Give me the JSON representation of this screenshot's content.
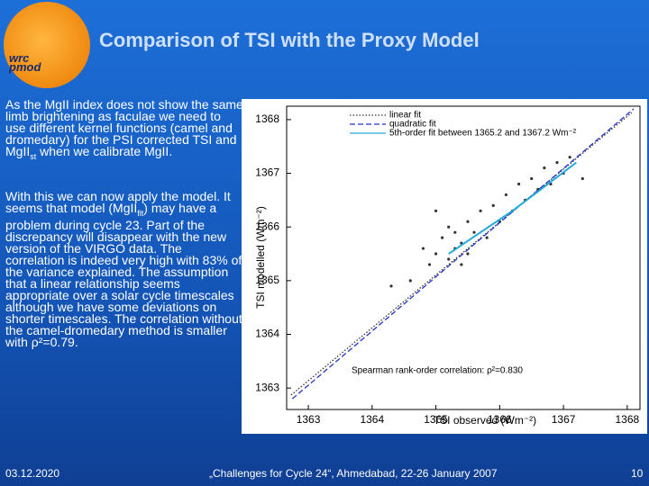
{
  "slide": {
    "title": "Comparison of TSI with the Proxy Model",
    "logo": [
      "wrc",
      "pmod"
    ],
    "body": [
      [
        "As the MgII index does not show the same limb brightening as faculae we need to use different kernel functions (camel and dromedary) for the PSI corrected TSI and MgII",
        "st",
        " when we calibrate MgII."
      ],
      [
        "With this we can now apply the model. It seems that model (MgII",
        "fit",
        ") may have a problem during cycle 23. Part of the discrepancy will disappear with the new version of the VIRGO data. The correlation is indeed very high with 83% of the variance explained. The assumption that a linear relationship seems appropriate over a solar cycle timescales although we have some deviations on shorter timescales. The correlation without the camel-dromedary method is smaller with ρ²=0.79."
      ]
    ],
    "footer": {
      "date": "03.12.2020",
      "event": "„Challenges for Cycle 24“, Ahmedabad, 22-26 January 2007",
      "page": "10"
    }
  },
  "chart_data": {
    "type": "scatter",
    "xlabel": "TSI observed (Wm⁻²)",
    "ylabel": "TSI modelled (Wm⁻²)",
    "annotation": "Spearman rank-order correlation: ρ²=0.830",
    "color": "#333333",
    "x": [
      1364.6,
      1364.8,
      1364.9,
      1365.0,
      1365.1,
      1365.2,
      1365.2,
      1365.3,
      1365.3,
      1365.4,
      1365.4,
      1365.5,
      1365.5,
      1365.6,
      1365.7,
      1365.8,
      1365.9,
      1366.0,
      1366.1,
      1366.2,
      1366.3,
      1366.4,
      1366.5,
      1366.6,
      1366.7,
      1366.8,
      1366.9,
      1367.0,
      1367.1,
      1364.3,
      1367.3,
      1365.0
    ],
    "values": [
      1365.0,
      1365.6,
      1365.3,
      1365.5,
      1365.8,
      1365.4,
      1366.0,
      1365.6,
      1365.9,
      1365.3,
      1365.7,
      1366.1,
      1365.5,
      1365.9,
      1366.3,
      1365.8,
      1366.4,
      1366.1,
      1366.6,
      1366.3,
      1366.8,
      1366.5,
      1366.9,
      1366.7,
      1367.1,
      1366.8,
      1367.2,
      1367.0,
      1367.3,
      1364.9,
      1366.9,
      1366.3
    ],
    "fits": [
      {
        "name": "linear fit",
        "color": "#333333",
        "style": "dotted",
        "x": [
          1362.73,
          1368.07
        ],
        "values": [
          1362.87,
          1368.13
        ]
      },
      {
        "name": "quadratic fit",
        "color": "#2233cc",
        "style": "dashed",
        "x": [
          1362.75,
          1368.1
        ],
        "values": [
          1362.8,
          1368.2
        ]
      },
      {
        "name": "5th-order fit between 1365.2 and 1367.2 Wm⁻²",
        "color": "#22aadd",
        "style": "solid",
        "x": [
          1365.2,
          1366.2,
          1367.2
        ],
        "values": [
          1365.5,
          1366.3,
          1367.2
        ]
      }
    ],
    "xlim": [
      1362.66,
      1368.2
    ],
    "ylim": [
      1362.6,
      1368.25
    ],
    "xticks": [
      1363,
      1364,
      1365,
      1366,
      1367,
      1368
    ],
    "yticks": [
      1363,
      1364,
      1365,
      1366,
      1367,
      1368
    ]
  }
}
